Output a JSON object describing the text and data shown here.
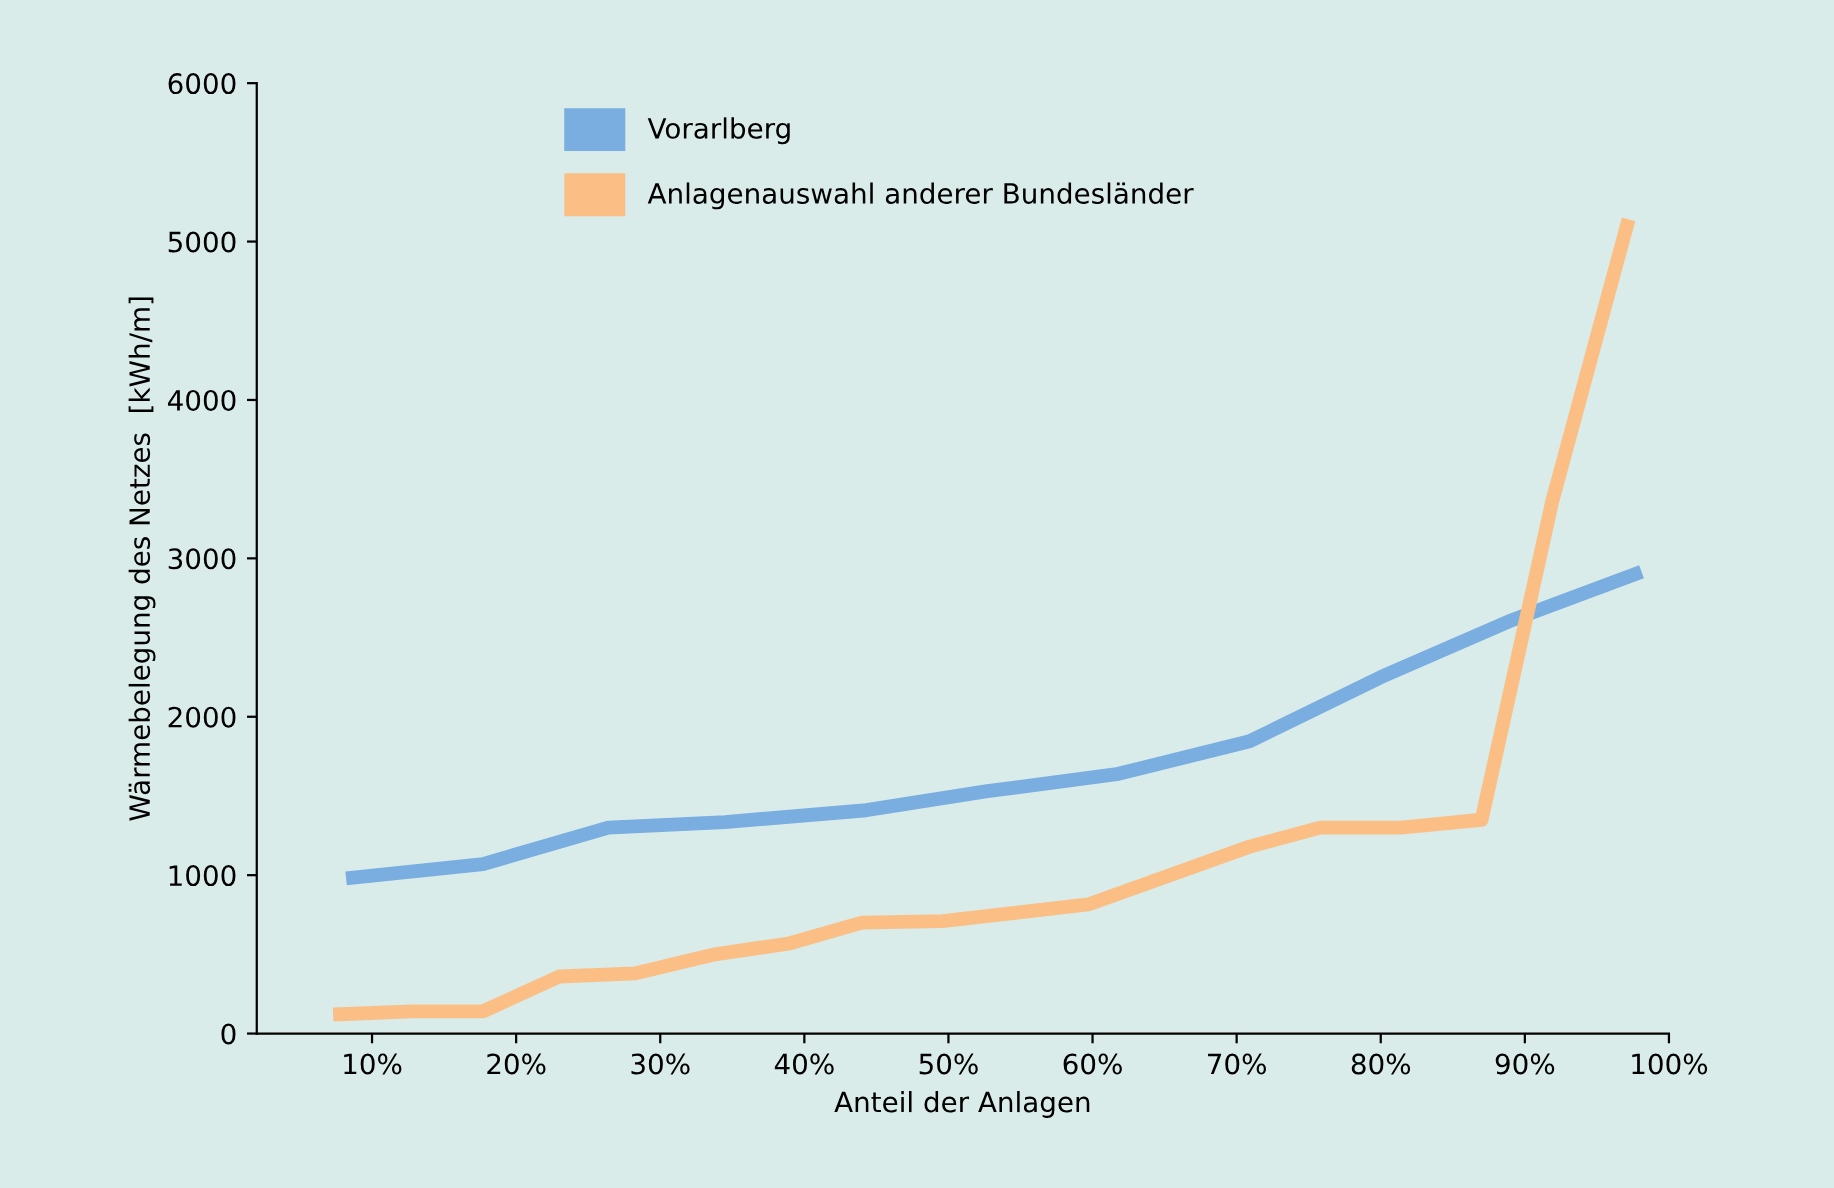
{
  "chart_data": {
    "type": "line",
    "xlabel": "Anteil der Anlagen",
    "ylabel": "Wärmebelegung des Netzes  [kWh/m]",
    "xlim": [
      2,
      100
    ],
    "ylim": [
      0,
      6000
    ],
    "xticks": [
      {
        "value": 10,
        "label": "10%"
      },
      {
        "value": 20,
        "label": "20%"
      },
      {
        "value": 30,
        "label": "30%"
      },
      {
        "value": 40,
        "label": "40%"
      },
      {
        "value": 50,
        "label": "50%"
      },
      {
        "value": 60,
        "label": "60%"
      },
      {
        "value": 70,
        "label": "70%"
      },
      {
        "value": 80,
        "label": "80%"
      },
      {
        "value": 90,
        "label": "90%"
      },
      {
        "value": 100,
        "label": "100%"
      }
    ],
    "yticks": [
      0,
      1000,
      2000,
      3000,
      4000,
      5000,
      6000
    ],
    "grid": false,
    "legend": "top left",
    "marker": "none",
    "line_style": "solid",
    "series": [
      {
        "name": "Vorarlberg",
        "color": "#7aaee0",
        "x": [
          8.2,
          17.7,
          26.4,
          34.5,
          44.3,
          52.7,
          61.8,
          70.9,
          80.0,
          89.1,
          98.1
        ],
        "values": [
          980,
          1070,
          1300,
          1335,
          1410,
          1530,
          1640,
          1845,
          2250,
          2610,
          2915
        ]
      },
      {
        "name": "Anlagenauswahl anderer Bundesländer",
        "color": "#fbbf86",
        "x": [
          7.3,
          12.8,
          17.7,
          23.0,
          28.3,
          33.8,
          39.0,
          44.0,
          49.6,
          59.7,
          70.9,
          75.8,
          81.4,
          87.0,
          91.9,
          97.2
        ],
        "values": [
          120,
          140,
          140,
          360,
          380,
          500,
          570,
          700,
          710,
          815,
          1180,
          1300,
          1300,
          1350,
          3360,
          5140
        ]
      }
    ]
  }
}
